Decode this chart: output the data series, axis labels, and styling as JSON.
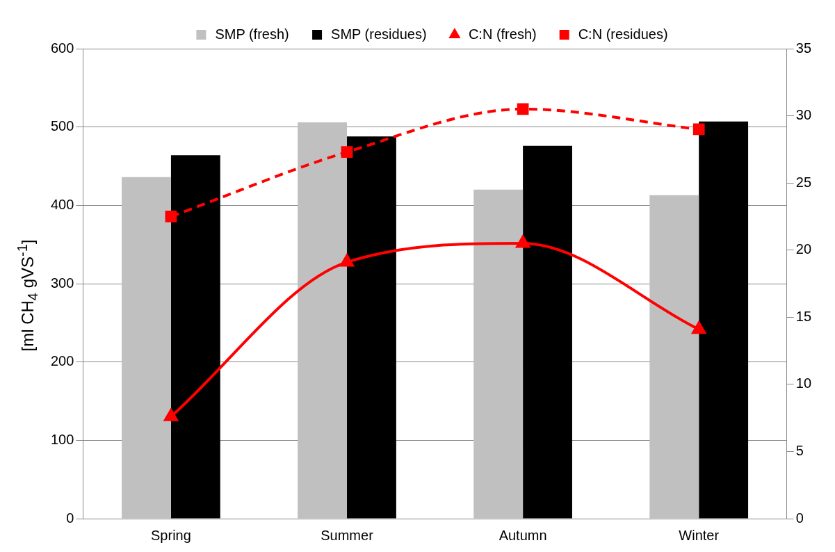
{
  "chart_data": {
    "type": "bar",
    "categories": [
      "Spring",
      "Summer",
      "Autumn",
      "Winter"
    ],
    "ylabel": "[ml CH$_{4}$ gVS$^{-1}$]",
    "ylim": [
      0,
      600
    ],
    "yticks": [
      0,
      100,
      200,
      300,
      400,
      500,
      600
    ],
    "y2lim": [
      0,
      35
    ],
    "y2ticks": [
      0,
      5,
      10,
      15,
      20,
      25,
      30,
      35
    ],
    "grid": "y",
    "legend": "top",
    "series": [
      {
        "name": "SMP (fresh)",
        "color": "#c0c0c0",
        "values": [
          436,
          506,
          420,
          413
        ]
      },
      {
        "name": "SMP (residues)",
        "color": "#000000",
        "values": [
          464,
          488,
          476,
          507
        ]
      },
      {
        "name": "C:N (fresh)",
        "type": "line",
        "axis": "y2",
        "color": "#ff0000",
        "marker": "triangle",
        "line_style": "solid",
        "values": [
          7.6,
          19.1,
          20.5,
          14.1
        ]
      },
      {
        "name": "C:N (residues)",
        "type": "line",
        "axis": "y2",
        "color": "#ff0000",
        "marker": "square",
        "line_style": "dashed",
        "values": [
          22.5,
          27.3,
          30.5,
          29.0
        ]
      }
    ]
  }
}
